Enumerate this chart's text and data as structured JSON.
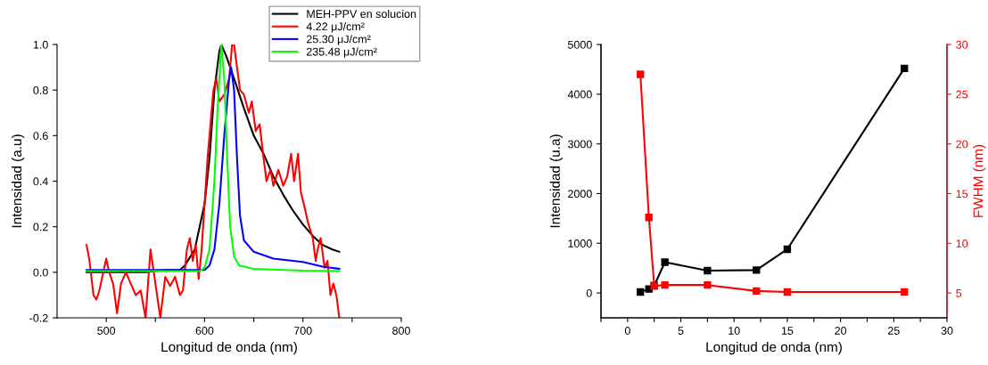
{
  "chart_data": [
    {
      "type": "line",
      "xlabel": "Longitud de onda (nm)",
      "ylabel": "Intensidad (a.u)",
      "xlim": [
        450,
        800
      ],
      "xticks": [
        500,
        {
          "value": 550,
          "label": null
        },
        600,
        {
          "value": 650,
          "label": null
        },
        700,
        {
          "value": 750,
          "label": null
        },
        800
      ],
      "ylim": [
        -0.2,
        1.0
      ],
      "yticks": [
        -0.2,
        {
          "value": 0,
          "label": "0.0"
        },
        0.2,
        0.4,
        0.6,
        0.8,
        {
          "value": 1,
          "label": "1.0"
        }
      ],
      "legend": "top right",
      "marker": "none",
      "line_style": "solid",
      "grid": false,
      "series": [
        {
          "name": "MEH-PPV en solucion",
          "color": "#000000",
          "x": [
            480,
            500,
            520,
            540,
            560,
            575,
            580,
            590,
            600,
            605,
            610,
            615,
            617,
            622,
            630,
            640,
            650,
            660,
            670,
            680,
            690,
            700,
            710,
            720,
            730,
            737
          ],
          "values": [
            0.0,
            0.0,
            0.0,
            0.0,
            0.01,
            0.01,
            0.03,
            0.1,
            0.3,
            0.5,
            0.8,
            0.97,
            1.0,
            0.95,
            0.85,
            0.72,
            0.6,
            0.52,
            0.42,
            0.34,
            0.27,
            0.21,
            0.16,
            0.12,
            0.1,
            0.09
          ]
        },
        {
          "name": "4.22 μJ/cm²",
          "color": "#ff0000",
          "x": [
            480,
            483,
            487,
            490,
            493,
            497,
            500,
            503,
            507,
            511,
            515,
            520,
            525,
            530,
            535,
            540,
            545,
            550,
            555,
            560,
            565,
            570,
            575,
            578,
            582,
            585,
            588,
            591,
            594,
            597,
            600,
            603,
            606,
            609,
            612,
            615,
            620,
            625,
            628,
            630,
            633,
            636,
            640,
            645,
            648,
            652,
            656,
            660,
            663,
            667,
            670,
            675,
            680,
            684,
            688,
            691,
            695,
            698,
            702,
            705,
            710,
            713,
            715,
            718,
            722,
            725,
            728,
            731,
            734,
            737
          ],
          "values": [
            0.12,
            0.05,
            -0.1,
            -0.12,
            -0.08,
            0.0,
            0.06,
            0.0,
            -0.05,
            -0.18,
            -0.05,
            0.0,
            -0.05,
            -0.1,
            -0.08,
            -0.2,
            0.1,
            -0.05,
            -0.2,
            -0.02,
            -0.06,
            -0.02,
            -0.1,
            -0.08,
            0.1,
            0.15,
            0.05,
            0.12,
            -0.03,
            0.1,
            0.3,
            0.5,
            0.65,
            0.8,
            0.85,
            0.75,
            0.78,
            0.85,
            1.0,
            1.0,
            0.9,
            0.8,
            0.78,
            0.7,
            0.75,
            0.62,
            0.65,
            0.5,
            0.4,
            0.45,
            0.38,
            0.45,
            0.38,
            0.42,
            0.52,
            0.4,
            0.52,
            0.35,
            0.28,
            0.22,
            0.15,
            0.05,
            0.1,
            0.15,
            0.02,
            0.05,
            -0.1,
            -0.05,
            -0.1,
            -0.2
          ]
        },
        {
          "name": "25.30 μJ/cm²",
          "color": "#0000ff",
          "x": [
            480,
            520,
            560,
            600,
            605,
            610,
            615,
            620,
            625,
            627,
            630,
            633,
            636,
            640,
            650,
            670,
            700,
            720,
            737
          ],
          "values": [
            0.01,
            0.01,
            0.01,
            0.01,
            0.03,
            0.1,
            0.3,
            0.6,
            0.85,
            0.9,
            0.8,
            0.5,
            0.25,
            0.14,
            0.09,
            0.06,
            0.045,
            0.025,
            0.015
          ]
        },
        {
          "name": "235.48 μJ/cm²",
          "color": "#00ff00",
          "x": [
            480,
            540,
            595,
            600,
            605,
            610,
            613,
            617,
            620,
            623,
            626,
            630,
            635,
            650,
            700,
            737
          ],
          "values": [
            0.005,
            0.005,
            0.005,
            0.02,
            0.1,
            0.4,
            0.7,
            1.0,
            0.85,
            0.5,
            0.2,
            0.07,
            0.03,
            0.015,
            0.007,
            0.005
          ]
        }
      ]
    },
    {
      "type": "line",
      "xlabel": "Longitud de onda (nm)",
      "ylabel": "Intensidad (u.a)",
      "y2label": "FWHM (nm)",
      "xlim": [
        -2.5,
        30
      ],
      "xticks": [
        {
          "value": -2.5,
          "label": null
        },
        0,
        {
          "value": 2.5,
          "label": null
        },
        5,
        {
          "value": 7.5,
          "label": null
        },
        10,
        {
          "value": 12.5,
          "label": null
        },
        15,
        {
          "value": 17.5,
          "label": null
        },
        20,
        {
          "value": 22.5,
          "label": null
        },
        25,
        {
          "value": 27.5,
          "label": null
        },
        30
      ],
      "ylim": [
        -500,
        5000
      ],
      "yticks": [
        0,
        1000,
        2000,
        3000,
        4000,
        5000
      ],
      "y2lim": [
        2.5,
        30
      ],
      "y2ticks": [
        5,
        10,
        15,
        20,
        25,
        30
      ],
      "marker": "square",
      "line_style": "solid",
      "grid": false,
      "legend": false,
      "series": [
        {
          "color": "#000000",
          "x": [
            1.2,
            2.0,
            2.5,
            3.5,
            7.5,
            12.1,
            15,
            26
          ],
          "values": [
            20,
            80,
            150,
            620,
            450,
            460,
            880,
            4520
          ]
        },
        {
          "color": "#ff0000",
          "axis": "y2",
          "x": [
            1.2,
            2.0,
            2.5,
            3.5,
            7.5,
            12.1,
            15,
            26
          ],
          "values": [
            27.0,
            12.6,
            5.7,
            5.8,
            5.8,
            5.2,
            5.1,
            5.1
          ]
        }
      ]
    }
  ]
}
